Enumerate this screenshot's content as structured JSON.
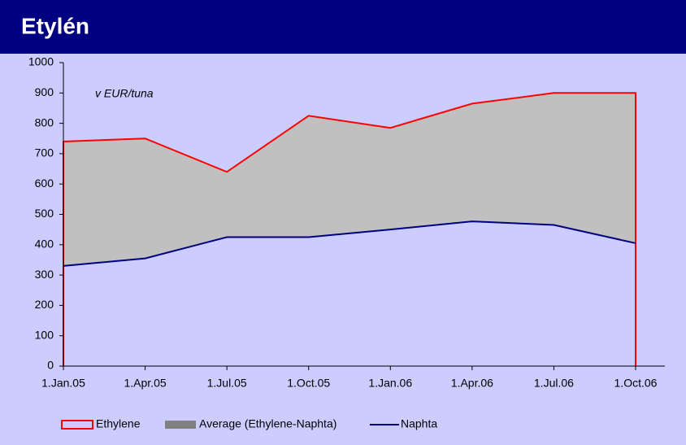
{
  "chart_data": {
    "type": "area-line",
    "title": "Etylén",
    "annotation": "v EUR/tuna",
    "categories": [
      "1.Jan.05",
      "1.Apr.05",
      "1.Jul.05",
      "1.Oct.05",
      "1.Jan.06",
      "1.Apr.06",
      "1.Jul.06",
      "1.Oct.06"
    ],
    "series": [
      {
        "name": "Ethylene",
        "color": "#ff0000",
        "values": [
          740,
          750,
          640,
          825,
          785,
          865,
          900,
          900
        ]
      },
      {
        "name": "Average (Ethylene-Naphta)",
        "color": "#c0c0c0"
      },
      {
        "name": "Naphta",
        "color": "#000080",
        "values": [
          330,
          355,
          425,
          425,
          450,
          477,
          465,
          405
        ]
      }
    ],
    "ylim": [
      0,
      1000
    ],
    "yticks": [
      0,
      100,
      200,
      300,
      400,
      500,
      600,
      700,
      800,
      900,
      1000
    ]
  }
}
